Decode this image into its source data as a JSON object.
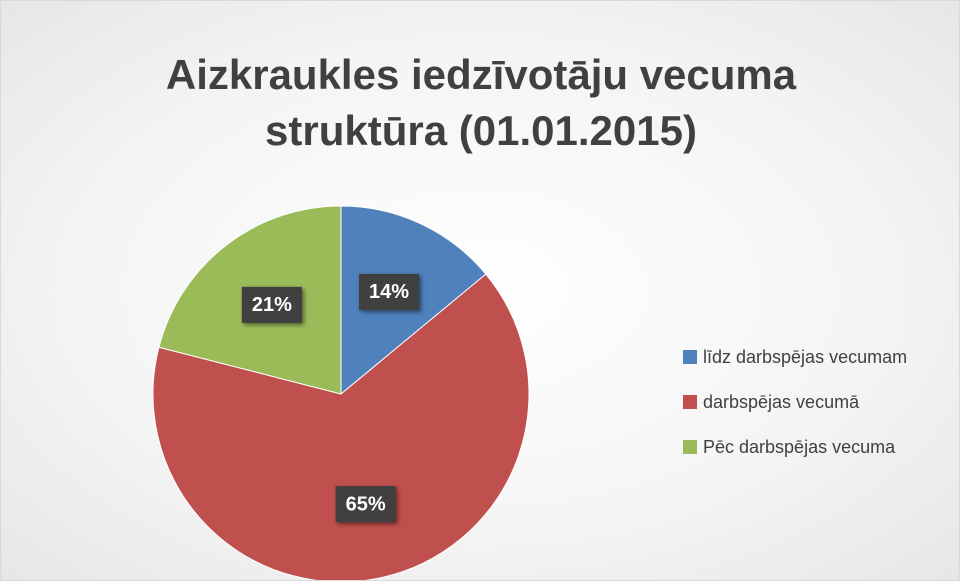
{
  "chart_data": {
    "type": "pie",
    "title": "Aizkraukles iedzīvotāju vecuma struktūra (01.01.2015)",
    "categories": [
      "līdz darbspējas vecumam",
      "darbspējas vecumā",
      "Pēc darbspējas vecuma"
    ],
    "values": [
      14,
      65,
      21
    ],
    "value_labels": [
      "14%",
      "65%",
      "21%"
    ],
    "colors": [
      "#4f81bd",
      "#c0504d",
      "#9bbb59"
    ],
    "legend": "right"
  }
}
